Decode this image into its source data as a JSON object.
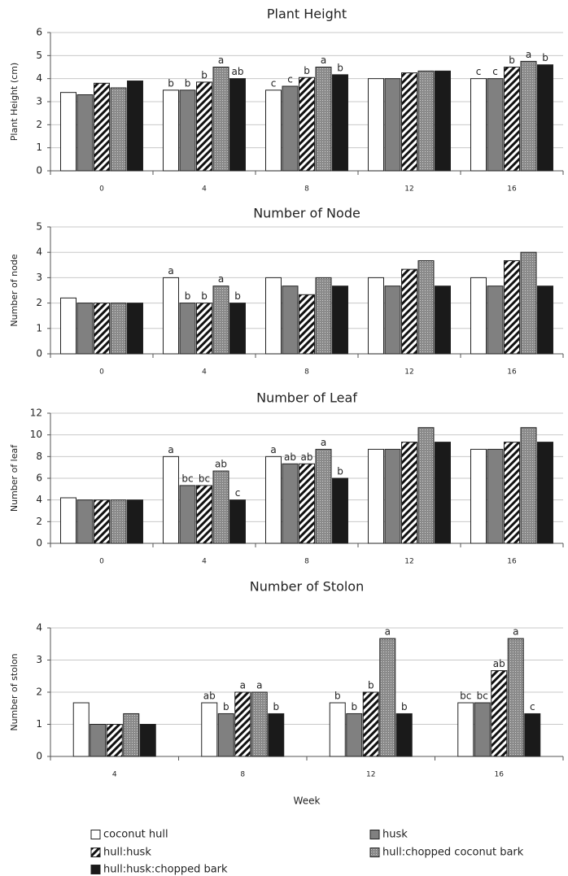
{
  "chart_data": [
    {
      "type": "bar",
      "title": "Plant Height",
      "y_label": "Plant Height (cm)",
      "categories": [
        "0",
        "4",
        "8",
        "12",
        "16"
      ],
      "ylim": [
        0,
        6
      ],
      "yticks": [
        0,
        1,
        2,
        3,
        4,
        5,
        6
      ],
      "grid": true,
      "series": [
        {
          "color": "#ffffff",
          "pattern": null,
          "values": [
            3.4,
            3.5,
            3.5,
            4.0,
            4.0
          ],
          "letters": [
            null,
            "b",
            "c",
            null,
            "c"
          ]
        },
        {
          "color": "#808080",
          "pattern": null,
          "values": [
            3.3,
            3.5,
            3.67,
            4.0,
            4.0
          ],
          "letters": [
            null,
            "b",
            "c",
            null,
            "c"
          ]
        },
        {
          "color": "#ffffff",
          "pattern": "diagonal",
          "values": [
            3.8,
            3.85,
            4.05,
            4.25,
            4.5
          ],
          "letters": [
            null,
            "b",
            "b",
            null,
            "b"
          ]
        },
        {
          "color": "#999999",
          "pattern": "dots",
          "values": [
            3.6,
            4.5,
            4.5,
            4.33,
            4.75
          ],
          "letters": [
            null,
            "a",
            "a",
            null,
            "a"
          ]
        },
        {
          "color": "#1a1a1a",
          "pattern": null,
          "values": [
            3.9,
            4.0,
            4.17,
            4.33,
            4.6
          ],
          "letters": [
            null,
            "ab",
            "b",
            null,
            "b"
          ]
        }
      ]
    },
    {
      "type": "bar",
      "title": "Number of Node",
      "y_label": "Number of node",
      "categories": [
        "0",
        "4",
        "8",
        "12",
        "16"
      ],
      "ylim": [
        0,
        5
      ],
      "yticks": [
        0,
        1,
        2,
        3,
        4,
        5
      ],
      "grid": true,
      "series": [
        {
          "color": "#ffffff",
          "pattern": null,
          "values": [
            2.2,
            3,
            3,
            3,
            3
          ],
          "letters": [
            null,
            "a",
            null,
            null,
            null
          ]
        },
        {
          "color": "#808080",
          "pattern": null,
          "values": [
            2,
            2,
            2.67,
            2.67,
            2.67
          ],
          "letters": [
            null,
            "b",
            null,
            null,
            null
          ]
        },
        {
          "color": "#ffffff",
          "pattern": "diagonal",
          "values": [
            2,
            2,
            2.33,
            3.33,
            3.67
          ],
          "letters": [
            null,
            "b",
            null,
            null,
            null
          ]
        },
        {
          "color": "#999999",
          "pattern": "dots",
          "values": [
            2,
            2.67,
            3,
            3.67,
            4
          ],
          "letters": [
            null,
            "a",
            null,
            null,
            null
          ]
        },
        {
          "color": "#1a1a1a",
          "pattern": null,
          "values": [
            2,
            2,
            2.67,
            2.67,
            2.67
          ],
          "letters": [
            null,
            "b",
            null,
            null,
            null
          ]
        }
      ]
    },
    {
      "type": "bar",
      "title": "Number of Leaf",
      "y_label": "Number of leaf",
      "categories": [
        "0",
        "4",
        "8",
        "12",
        "16"
      ],
      "ylim": [
        0,
        12
      ],
      "yticks": [
        0,
        2,
        4,
        6,
        8,
        10,
        12
      ],
      "grid": true,
      "series": [
        {
          "color": "#ffffff",
          "pattern": null,
          "values": [
            4.2,
            8,
            8,
            8.67,
            8.67
          ],
          "letters": [
            null,
            "a",
            "a",
            null,
            null
          ]
        },
        {
          "color": "#808080",
          "pattern": null,
          "values": [
            4,
            5.33,
            7.33,
            8.67,
            8.67
          ],
          "letters": [
            null,
            "bc",
            "ab",
            null,
            null
          ]
        },
        {
          "color": "#ffffff",
          "pattern": "diagonal",
          "values": [
            4,
            5.33,
            7.33,
            9.33,
            9.33
          ],
          "letters": [
            null,
            "bc",
            "ab",
            null,
            null
          ]
        },
        {
          "color": "#999999",
          "pattern": "dots",
          "values": [
            4,
            6.67,
            8.67,
            10.67,
            10.67
          ],
          "letters": [
            null,
            "ab",
            "a",
            null,
            null
          ]
        },
        {
          "color": "#1a1a1a",
          "pattern": null,
          "values": [
            4,
            4,
            6,
            9.33,
            9.33
          ],
          "letters": [
            null,
            "c",
            "b",
            null,
            null
          ]
        }
      ]
    },
    {
      "type": "bar",
      "title": "Number of Stolon",
      "y_label": "Number of stolon",
      "x_label": "Week",
      "categories": [
        "4",
        "8",
        "12",
        "16"
      ],
      "ylim": [
        0,
        4
      ],
      "yticks": [
        0,
        1,
        2,
        3,
        4
      ],
      "grid": true,
      "series": [
        {
          "name": "coconut hull",
          "color": "#ffffff",
          "pattern": null,
          "values": [
            1.67,
            1.67,
            1.67,
            1.67
          ],
          "letters": [
            null,
            "ab",
            "b",
            "bc"
          ]
        },
        {
          "name": "husk",
          "color": "#808080",
          "pattern": null,
          "values": [
            1,
            1.33,
            1.33,
            1.67
          ],
          "letters": [
            null,
            "b",
            "b",
            "bc"
          ]
        },
        {
          "name": "hull:husk",
          "color": "#ffffff",
          "pattern": "diagonal",
          "values": [
            1,
            2,
            2,
            2.67
          ],
          "letters": [
            null,
            "a",
            "b",
            "ab"
          ]
        },
        {
          "name": "hull:chopped coconut bark",
          "color": "#999999",
          "pattern": "dots",
          "values": [
            1.33,
            2,
            3.67,
            3.67
          ],
          "letters": [
            null,
            "a",
            "a",
            "a"
          ]
        },
        {
          "name": "hull:husk:chopped bark",
          "color": "#1a1a1a",
          "pattern": null,
          "values": [
            1,
            1.33,
            1.33,
            1.33
          ],
          "letters": [
            null,
            "b",
            "b",
            "c"
          ]
        }
      ]
    }
  ]
}
